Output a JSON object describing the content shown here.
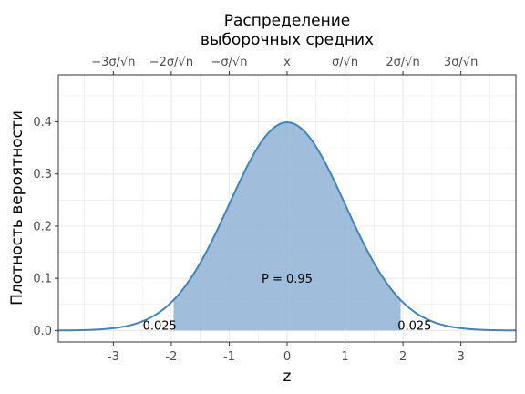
{
  "chart_data": {
    "type": "area",
    "title_lines": [
      "Распределение",
      "выборочных средних"
    ],
    "xlabel": "z",
    "ylabel": "Плотность вероятности",
    "xlim": [
      -3.95,
      3.95
    ],
    "ylim": [
      -0.022,
      0.49
    ],
    "x_ticks": [
      -3,
      -2,
      -1,
      0,
      1,
      2,
      3
    ],
    "x_tick_labels": [
      "-3",
      "-2",
      "-1",
      "0",
      "1",
      "2",
      "3"
    ],
    "y_ticks": [
      0.0,
      0.1,
      0.2,
      0.3,
      0.4
    ],
    "y_tick_labels": [
      "0.0",
      "0.1",
      "0.2",
      "0.3",
      "0.4"
    ],
    "top_axis_ticks": [
      -3,
      -2,
      -1,
      0,
      1,
      2,
      3
    ],
    "top_axis_labels": [
      "−3σ/√n",
      "−2σ/√n",
      "−σ/√n",
      "x̄",
      "σ/√n",
      "2σ/√n",
      "3σ/√n"
    ],
    "series": [
      {
        "kind": "normal-density",
        "mean": 0,
        "sd": 1,
        "shaded_interval": [
          -1.96,
          1.96
        ]
      }
    ],
    "annotations": [
      {
        "text": "P = 0.95",
        "x": 0,
        "y": 0.1
      },
      {
        "text": "0.025",
        "x": -2.2,
        "y": 0.01
      },
      {
        "text": "0.025",
        "x": 2.2,
        "y": 0.01
      }
    ],
    "grid": true,
    "colors": {
      "line": "#4682b4",
      "fill": "#8fb3d6",
      "grid": "#ebebeb",
      "panel_border": "#333333"
    }
  }
}
